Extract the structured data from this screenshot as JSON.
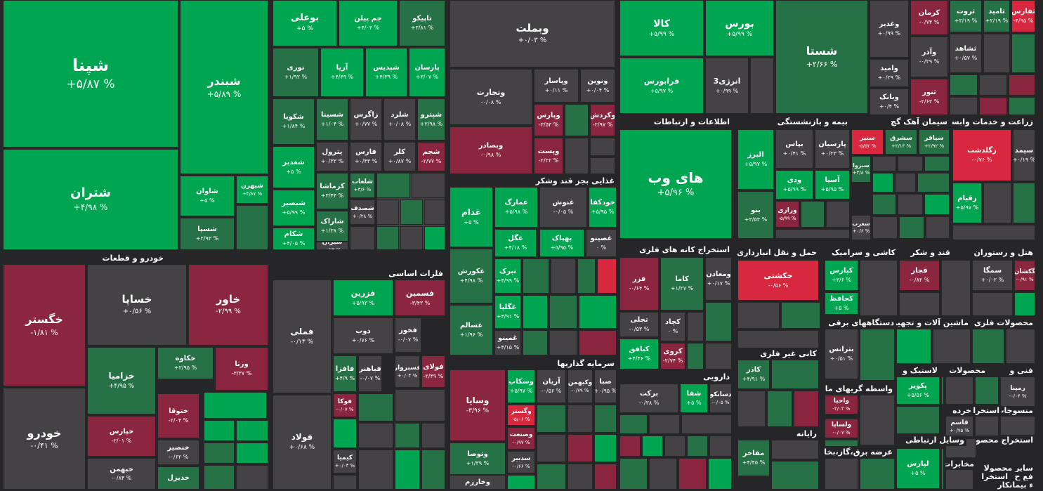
{
  "colors": {
    "strong_green": "#00a551",
    "mid_green": "#277146",
    "neutral": "#444245",
    "mid_red": "#8b2640",
    "strong_red": "#d8283f",
    "border": "#262528"
  },
  "sectors": [
    {
      "id": "s-auto",
      "label": "خودرو و قطعات"
    },
    {
      "id": "s-metals",
      "label": "فلزات اساسی"
    },
    {
      "id": "s-food",
      "label": "غذایی بجز قند وشکر"
    },
    {
      "id": "s-invest",
      "label": "سرمایه گذاریها"
    },
    {
      "id": "s-it",
      "label": "اطلاعات و ارتباطات"
    },
    {
      "id": "s-mining",
      "label": "استخراج کانه های فلزی"
    },
    {
      "id": "s-pharma",
      "label": "دارویی"
    },
    {
      "id": "s-insurance",
      "label": "بیمه و بازنشستگی"
    },
    {
      "id": "s-cement",
      "label": "سیمان آهک گچ"
    },
    {
      "id": "s-agri",
      "label": "زراعت و خدمات وابسته"
    },
    {
      "id": "s-transport",
      "label": "حمل و نقل انبارداری و"
    },
    {
      "id": "s-tile",
      "label": "کاشی و سرامیک"
    },
    {
      "id": "s-sugar",
      "label": "قند و شکر"
    },
    {
      "id": "s-hotel",
      "label": "هتل و رستوران"
    },
    {
      "id": "s-electric",
      "label": "دستگاههای برقی"
    },
    {
      "id": "s-machinery",
      "label": "ماشین آلات و تجهیزات"
    },
    {
      "id": "s-metalprod",
      "label": "محصولات فلزی"
    },
    {
      "id": "s-nonmetal",
      "label": "کانی غیر فلزی"
    },
    {
      "id": "s-rubber",
      "label": "لاستیک و"
    },
    {
      "id": "s-products",
      "label": "محصولات"
    },
    {
      "id": "s-tech",
      "label": "فنی و"
    },
    {
      "id": "s-finance",
      "label": "واسطه گریهای مالی و"
    },
    {
      "id": "s-textile",
      "label": "منسوجات"
    },
    {
      "id": "s-wood",
      "label": "خرده"
    },
    {
      "id": "s-extract",
      "label": "استخراج"
    },
    {
      "id": "s-radio",
      "label": "رایانه"
    },
    {
      "id": "s-power",
      "label": "عرضه برق،گاز،بخار و"
    },
    {
      "id": "s-comm",
      "label": "وسایل ارتباطی"
    },
    {
      "id": "s-extract2",
      "label": "استخراج محصو"
    },
    {
      "id": "s-press",
      "label": "مخابرات"
    },
    {
      "id": "s-build",
      "label": "ساير محصولا"
    },
    {
      "id": "s-other2",
      "label": "فع ح"
    },
    {
      "id": "s-other3",
      "label": "استخرا"
    },
    {
      "id": "s-other4",
      "label": "ء بيمانكار"
    }
  ],
  "tiles": [
    {
      "symbol": "شپنا",
      "change": "+۵/۸۷ %",
      "tone": "g"
    },
    {
      "symbol": "شبندر",
      "change": "+۵/۸۹ %",
      "tone": "g"
    },
    {
      "symbol": "شتران",
      "change": "+۴/۹۸ %",
      "tone": "g"
    },
    {
      "symbol": "شاوان",
      "change": "+۵ %",
      "tone": "g"
    },
    {
      "symbol": "شبهرن",
      "change": "+۴/۸۷ %",
      "tone": "g"
    },
    {
      "symbol": "شسپا",
      "change": "+۲/۹۳ %",
      "tone": "m"
    },
    {
      "symbol": "بوعلی",
      "change": "+۵ %",
      "tone": "g"
    },
    {
      "symbol": "جم پیلن",
      "change": "+۴/۰۴ %",
      "tone": "g"
    },
    {
      "symbol": "تاپیکو",
      "change": "+۳/۸۱ %",
      "tone": "m"
    },
    {
      "symbol": "نوری",
      "change": "+۱/۹۲ %",
      "tone": "m"
    },
    {
      "symbol": "آریا",
      "change": "+۴/۴۹ %",
      "tone": "g"
    },
    {
      "symbol": "شپدیس",
      "change": "+۴/۳۹ %",
      "tone": "g"
    },
    {
      "symbol": "پارسان",
      "change": "+۳/۰۷ %",
      "tone": "g"
    },
    {
      "symbol": "شکویا",
      "change": "+۱/۸۴ %",
      "tone": "m"
    },
    {
      "symbol": "شسینا",
      "change": "+۱/۰۴ %",
      "tone": "m"
    },
    {
      "symbol": "زاگرس",
      "change": "+۰/۷۷ %",
      "tone": "n"
    },
    {
      "symbol": "شلرد",
      "change": "+۰/۰۸ %",
      "tone": "n"
    },
    {
      "symbol": "شپترو",
      "change": "+۲/۹۸ %",
      "tone": "m"
    },
    {
      "symbol": "شغدیر",
      "change": "+۵ %",
      "tone": "g"
    },
    {
      "symbol": "پترول",
      "change": "+۰/۳۳ %",
      "tone": "n"
    },
    {
      "symbol": "فارس",
      "change": "+۰/۴۳ %",
      "tone": "n"
    },
    {
      "symbol": "کلر",
      "change": "+۰/۸۷ %",
      "tone": "n"
    },
    {
      "symbol": "شجم",
      "change": "-۲/۷۷ %",
      "tone": "r"
    },
    {
      "symbol": "شبصیر",
      "change": "+۵/۹۹ %",
      "tone": "g"
    },
    {
      "symbol": "کرماشا",
      "change": "+۳/۴۴ %",
      "tone": "m"
    },
    {
      "symbol": "شلعاب",
      "change": "+۳/۶ %",
      "tone": "m"
    },
    {
      "symbol": "شکام",
      "change": "+۴/۰۵ %",
      "tone": "g"
    },
    {
      "symbol": "شاراک",
      "change": "+۱/۳۸ %",
      "tone": "m"
    },
    {
      "symbol": "شصدف",
      "change": "+۰/۲۸ %",
      "tone": "n"
    },
    {
      "symbol": "شیران",
      "change": "-۰/۷۴ %",
      "tone": "n"
    },
    {
      "symbol": "وبملت",
      "change": "+۰/۰۳ %",
      "tone": "n"
    },
    {
      "symbol": "وتجارت",
      "change": "-۰/۰۸ %",
      "tone": "n"
    },
    {
      "symbol": "وپاسار",
      "change": "+۰/۱۱ %",
      "tone": "n"
    },
    {
      "symbol": "ونوین",
      "change": "+۰/۰۴ %",
      "tone": "n"
    },
    {
      "symbol": "وپارس",
      "change": "-۳/۵۳ %",
      "tone": "r"
    },
    {
      "symbol": "وکردش",
      "change": "-۲/۹۷ %",
      "tone": "r"
    },
    {
      "symbol": "وبصادر",
      "change": "-۰/۹۸ %",
      "tone": "r"
    },
    {
      "symbol": "وپست",
      "change": "-۲/۲۲ %",
      "tone": "r"
    },
    {
      "symbol": "کالا",
      "change": "+۵/۹۹ %",
      "tone": "g"
    },
    {
      "symbol": "بورس",
      "change": "+۵/۹۹ %",
      "tone": "g"
    },
    {
      "symbol": "فرابورس",
      "change": "+۵/۹۷ %",
      "tone": "g"
    },
    {
      "symbol": "انرژی3",
      "change": "+۰/۹۹ %",
      "tone": "n"
    },
    {
      "symbol": "شستا",
      "change": "+۲/۶۶ %",
      "tone": "m"
    },
    {
      "symbol": "وغدیر",
      "change": "+۰/۹۹ %",
      "tone": "n"
    },
    {
      "symbol": "کرمان",
      "change": "-۰/۷۴ %",
      "tone": "r"
    },
    {
      "symbol": "وآذر",
      "change": "-۰/۲۹ %",
      "tone": "n"
    },
    {
      "symbol": "ثروت",
      "change": "+۳/۱۹ %",
      "tone": "m"
    },
    {
      "symbol": "ثامید",
      "change": "+۲/۱۹ %",
      "tone": "m"
    },
    {
      "symbol": "ثفارس",
      "change": "-۴/۹۵ %",
      "tone": "x"
    },
    {
      "symbol": "ثشاهد",
      "change": "+۰/۵۷ %",
      "tone": "n"
    },
    {
      "symbol": "وامید",
      "change": "+۰/۲۹ %",
      "tone": "n"
    },
    {
      "symbol": "وبانک",
      "change": "+۰/۴ %",
      "tone": "n"
    },
    {
      "symbol": "ثنور",
      "change": "-۲/۶۲ %",
      "tone": "r"
    },
    {
      "symbol": "های وب",
      "change": "+۵/۹۶ %",
      "tone": "g"
    },
    {
      "symbol": "البرز",
      "change": "+۵/۹۷ %",
      "tone": "g"
    },
    {
      "symbol": "بپاس",
      "change": "+۰/۴۱ %",
      "tone": "n"
    },
    {
      "symbol": "پارسیان",
      "change": "+۰/۲۳ %",
      "tone": "n"
    },
    {
      "symbol": "ودی",
      "change": "+۵/۹۹ %",
      "tone": "g"
    },
    {
      "symbol": "آسیا",
      "change": "+۵/۹۵ %",
      "tone": "g"
    },
    {
      "symbol": "ورازی",
      "change": "-۵/۹۹ %",
      "tone": "r"
    },
    {
      "symbol": "بنو",
      "change": "+۳/۵۳ %",
      "tone": "m"
    },
    {
      "symbol": "سنیر",
      "change": "-۵/۵۲ %",
      "tone": "x"
    },
    {
      "symbol": "سشرق",
      "change": "+۲/۱۳ %",
      "tone": "m"
    },
    {
      "symbol": "سیاقر",
      "change": "+۲/۹۲ %",
      "tone": "m"
    },
    {
      "symbol": "سبزوا",
      "change": "+۳/۸ %",
      "tone": "m"
    },
    {
      "symbol": "سغرب",
      "change": "+۰/۶ %",
      "tone": "n"
    },
    {
      "symbol": "زگلدشت",
      "change": "-۰/۷۶ %",
      "tone": "x"
    },
    {
      "symbol": "سیمد",
      "change": "+۰/۱۹ %",
      "tone": "n"
    },
    {
      "symbol": "زقیام",
      "change": "+۵/۹۷ %",
      "tone": "g"
    },
    {
      "symbol": "غدام",
      "change": "+۵ %",
      "tone": "g"
    },
    {
      "symbol": "غمارگ",
      "change": "+۵/۹۸ %",
      "tone": "g"
    },
    {
      "symbol": "غنوش",
      "change": "-۰/۰۵ %",
      "tone": "n"
    },
    {
      "symbol": "خودکفا",
      "change": "+۵/۹۵ %",
      "tone": "g"
    },
    {
      "symbol": "غگل",
      "change": "+۴/۱۸ %",
      "tone": "g"
    },
    {
      "symbol": "بهپاک",
      "change": "+۵/۹۵ %",
      "tone": "g"
    },
    {
      "symbol": "غصینو",
      "change": "۰ %",
      "tone": "n"
    },
    {
      "symbol": "غکورش",
      "change": "+۴/۹۸ %",
      "tone": "m"
    },
    {
      "symbol": "غسالم",
      "change": "+۱/۹۶ %",
      "tone": "m"
    },
    {
      "symbol": "تبرک",
      "change": "+۴/۹۹ %",
      "tone": "g"
    },
    {
      "symbol": "غگلپا",
      "change": "+۴/۹۱ %",
      "tone": "g"
    },
    {
      "symbol": "غمینو",
      "change": "+۴/۱۵ %",
      "tone": "n"
    },
    {
      "symbol": "خگستر",
      "change": "-۱/۸۱ %",
      "tone": "r"
    },
    {
      "symbol": "خساپا",
      "change": "+۰/۵۶ %",
      "tone": "n"
    },
    {
      "symbol": "خاور",
      "change": "-۲/۹۹ %",
      "tone": "r"
    },
    {
      "symbol": "خزامیا",
      "change": "+۴/۹۵ %",
      "tone": "m"
    },
    {
      "symbol": "خکاوه",
      "change": "+۲/۹۵ %",
      "tone": "m"
    },
    {
      "symbol": "ورنا",
      "change": "-۳/۳۷ %",
      "tone": "r"
    },
    {
      "symbol": "خودرو",
      "change": "-۰/۴۱ %",
      "tone": "n"
    },
    {
      "symbol": "ختوقا",
      "change": "-۲/۰۴ %",
      "tone": "r"
    },
    {
      "symbol": "خپارس",
      "change": "-۲/۰۱ %",
      "tone": "r"
    },
    {
      "symbol": "خنصیر",
      "change": "-۰/۶۲ %",
      "tone": "n"
    },
    {
      "symbol": "خبهمن",
      "change": "-۰/۸۴ %",
      "tone": "n"
    },
    {
      "symbol": "خدیزل",
      "change": "",
      "tone": "m"
    },
    {
      "symbol": "فملی",
      "change": "-۰/۱۳ %",
      "tone": "n"
    },
    {
      "symbol": "فولاد",
      "change": "+۰/۶۸ %",
      "tone": "n"
    },
    {
      "symbol": "فزرین",
      "change": "+۵/۹۳ %",
      "tone": "g"
    },
    {
      "symbol": "فسمین",
      "change": "-۳/۴۳ %",
      "tone": "r"
    },
    {
      "symbol": "ذوب",
      "change": "+۰/۷۶ %",
      "tone": "n"
    },
    {
      "symbol": "فخوز",
      "change": "-۰/۰۷ %",
      "tone": "n"
    },
    {
      "symbol": "فافزا",
      "change": "+۴/۹ %",
      "tone": "m"
    },
    {
      "symbol": "فباهنر",
      "change": "-۰/۰۷ %",
      "tone": "n"
    },
    {
      "symbol": "فسبزوار",
      "change": "+۰/۰۴ %",
      "tone": "n"
    },
    {
      "symbol": "فولای",
      "change": "-۲/۴۹ %",
      "tone": "r"
    },
    {
      "symbol": "فوکا",
      "change": "-۰/۰۷ %",
      "tone": "r"
    },
    {
      "symbol": "کیمیا",
      "change": "+۰/۰۳ %",
      "tone": "n"
    },
    {
      "symbol": "وسایا",
      "change": "-۳/۹۶ %",
      "tone": "r"
    },
    {
      "symbol": "وسکاب",
      "change": "+۵/۹۷ %",
      "tone": "g"
    },
    {
      "symbol": "آریان",
      "change": "-۰/۵۶ %",
      "tone": "n"
    },
    {
      "symbol": "وکبهمن",
      "change": "-۰/۷۹ %",
      "tone": "n"
    },
    {
      "symbol": "صبا",
      "change": "+۰/۹۵ %",
      "tone": "n"
    },
    {
      "symbol": "وگستر",
      "change": "-۵/۰۶ %",
      "tone": "x"
    },
    {
      "symbol": "وصنعت",
      "change": "-۰/۹۷ %",
      "tone": "r"
    },
    {
      "symbol": "وتوصا",
      "change": "+۱/۳۹ %",
      "tone": "m"
    },
    {
      "symbol": "سدبیر",
      "change": "-۰/۶۶ %",
      "tone": "n"
    },
    {
      "symbol": "وخارزم",
      "change": "",
      "tone": "n"
    },
    {
      "symbol": "فزر",
      "change": "-۰/۶۴ %",
      "tone": "r"
    },
    {
      "symbol": "کاما",
      "change": "+۱/۲۷ %",
      "tone": "m"
    },
    {
      "symbol": "ومعادن",
      "change": "+۰/۱۷ %",
      "tone": "n"
    },
    {
      "symbol": "تجلی",
      "change": "-۰/۵۳ %",
      "tone": "n"
    },
    {
      "symbol": "کچاد",
      "change": "۰ %",
      "tone": "n"
    },
    {
      "symbol": "کبافق",
      "change": "+۴/۴۶ %",
      "tone": "g"
    },
    {
      "symbol": "کروی",
      "change": "-۲/۷۴ %",
      "tone": "r"
    },
    {
      "symbol": "برکت",
      "change": "-۰/۲۸ %",
      "tone": "n"
    },
    {
      "symbol": "شفا",
      "change": "+۵ %",
      "tone": "g"
    },
    {
      "symbol": "دسانکو",
      "change": "-۰/۰۵ %",
      "tone": "n"
    },
    {
      "symbol": "حکشتی",
      "change": "-۰/۵۶ %",
      "tone": "x"
    },
    {
      "symbol": "کپارس",
      "change": "+۴/۶ %",
      "tone": "g"
    },
    {
      "symbol": "کحافظ",
      "change": "+۵ %",
      "tone": "g"
    },
    {
      "symbol": "قجار",
      "change": "-۰/۸۲ %",
      "tone": "r"
    },
    {
      "symbol": "سمگا",
      "change": "+۰/۰۲ %",
      "tone": "n"
    },
    {
      "symbol": "گکشان",
      "change": "-۰/۹۱ %",
      "tone": "r"
    },
    {
      "symbol": "بترانس",
      "change": "+۰/۵۱ %",
      "tone": "n"
    },
    {
      "symbol": "کاذر",
      "change": "+۴/۹۱ %",
      "tone": "m"
    },
    {
      "symbol": "پکویر",
      "change": "+۵/۵۶ %",
      "tone": "g"
    },
    {
      "symbol": "واحیا",
      "change": "-۲/۰۲ %",
      "tone": "r"
    },
    {
      "symbol": "ولساپا",
      "change": "-۰/۰۷ %",
      "tone": "r"
    },
    {
      "symbol": "رمپنا",
      "change": "-۰/۰۴ %",
      "tone": "n"
    },
    {
      "symbol": "قاسم",
      "change": "+۰/۷۵ %",
      "tone": "n"
    },
    {
      "symbol": "مفاخر",
      "change": "+۴/۴۵ %",
      "tone": "m"
    },
    {
      "symbol": "لپارس",
      "change": "+۵ %",
      "tone": "g"
    }
  ]
}
